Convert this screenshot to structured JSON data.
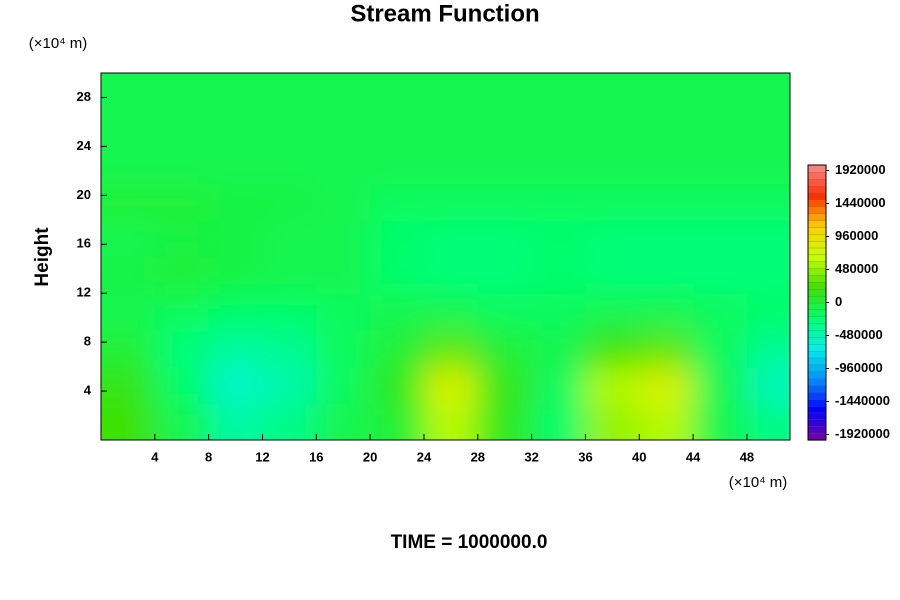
{
  "chart_data": {
    "type": "contour",
    "title": "Stream Function",
    "y_label": "Height",
    "y_unit": "(×10⁴ m)",
    "x_unit": "(×10⁴ m)",
    "footer": "TIME = 1000000.0",
    "xlim": [
      0,
      51.2
    ],
    "ylim": [
      0,
      30
    ],
    "xticks": [
      4,
      8,
      12,
      16,
      20,
      24,
      28,
      32,
      36,
      40,
      44,
      48
    ],
    "yticks": [
      4,
      8,
      12,
      16,
      20,
      24,
      28
    ],
    "x": [
      2,
      6,
      10,
      14,
      18,
      22,
      26,
      30,
      34,
      38,
      42,
      46,
      50
    ],
    "y": [
      1.5,
      4.5,
      7.5,
      10.5,
      13.5,
      16.5,
      19.5,
      22.5,
      25.5,
      28.5
    ],
    "z": [
      [
        200000,
        -100000,
        -400000,
        -300000,
        -100000,
        0,
        600000,
        100000,
        -200000,
        500000,
        600000,
        -100000,
        -300000
      ],
      [
        150000,
        -200000,
        -550000,
        -450000,
        -150000,
        100000,
        800000,
        150000,
        -150000,
        600000,
        800000,
        -100000,
        -500000
      ],
      [
        0,
        -250000,
        -400000,
        -350000,
        -150000,
        0,
        300000,
        0,
        -100000,
        200000,
        300000,
        -150000,
        -350000
      ],
      [
        -100000,
        -150000,
        -200000,
        -200000,
        -150000,
        -100000,
        -100000,
        -150000,
        -150000,
        -100000,
        -100000,
        -150000,
        -200000
      ],
      [
        -50000,
        0,
        -50000,
        -100000,
        -100000,
        -200000,
        -250000,
        -250000,
        -200000,
        -250000,
        -250000,
        -250000,
        -250000
      ],
      [
        -100000,
        -50000,
        -50000,
        -100000,
        -100000,
        -200000,
        -250000,
        -250000,
        -200000,
        -250000,
        -250000,
        -250000,
        -250000
      ],
      [
        0,
        0,
        -50000,
        -50000,
        -100000,
        -150000,
        -150000,
        -150000,
        -150000,
        -150000,
        -150000,
        -150000,
        -150000
      ],
      [
        -100000,
        -100000,
        -100000,
        -100000,
        -100000,
        -100000,
        -100000,
        -100000,
        -100000,
        -100000,
        -100000,
        -100000,
        -100000
      ],
      [
        -100000,
        -100000,
        -100000,
        -100000,
        -100000,
        -100000,
        -100000,
        -100000,
        -100000,
        -100000,
        -100000,
        -100000,
        -100000
      ],
      [
        -100000,
        -100000,
        -100000,
        -100000,
        -100000,
        -100000,
        -100000,
        -100000,
        -100000,
        -100000,
        -100000,
        -100000,
        -100000
      ]
    ],
    "clim": [
      -2000000,
      2000000
    ],
    "colorbar_ticks": [
      1920000,
      1440000,
      960000,
      480000,
      0,
      -480000,
      -960000,
      -1440000,
      -1920000
    ],
    "colormap": [
      "#7a00a0",
      "#0000ff",
      "#0090ff",
      "#00f0e8",
      "#00ff70",
      "#40e000",
      "#c8ff00",
      "#ffd000",
      "#ff3000",
      "#ff8a8a"
    ]
  }
}
